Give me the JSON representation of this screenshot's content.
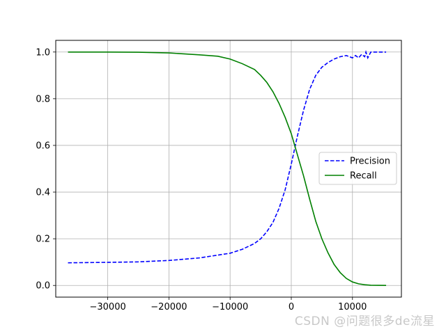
{
  "chart_data": {
    "type": "line",
    "title": "",
    "xlabel": "",
    "ylabel": "",
    "xlim": [
      -38500,
      18000
    ],
    "ylim": [
      -0.05,
      1.05
    ],
    "xticks": [
      -30000,
      -20000,
      -10000,
      0,
      10000
    ],
    "xtick_labels": [
      "−30000",
      "−20000",
      "−10000",
      "0",
      "10000"
    ],
    "yticks": [
      0.0,
      0.2,
      0.4,
      0.6,
      0.8,
      1.0
    ],
    "ytick_labels": [
      "0.0",
      "0.2",
      "0.4",
      "0.6",
      "0.8",
      "1.0"
    ],
    "grid": true,
    "legend": "center-right",
    "series": [
      {
        "name": "Precision",
        "color": "#0000ff",
        "style": "dashed",
        "x": [
          -36500,
          -30000,
          -25000,
          -20000,
          -15000,
          -10000,
          -8000,
          -6000,
          -5000,
          -4000,
          -3000,
          -2000,
          -1000,
          0,
          1000,
          2000,
          3000,
          4000,
          5000,
          6000,
          7000,
          8000,
          9000,
          10000,
          10500,
          11000,
          11500,
          12000,
          12200,
          12500,
          13000,
          15500
        ],
        "y": [
          0.097,
          0.099,
          0.101,
          0.107,
          0.118,
          0.138,
          0.155,
          0.18,
          0.2,
          0.23,
          0.27,
          0.33,
          0.41,
          0.52,
          0.64,
          0.75,
          0.84,
          0.9,
          0.935,
          0.955,
          0.97,
          0.98,
          0.985,
          0.975,
          0.985,
          0.975,
          0.99,
          0.98,
          1.0,
          0.975,
          1.0,
          1.0
        ]
      },
      {
        "name": "Recall",
        "color": "#008000",
        "style": "solid",
        "x": [
          -36500,
          -30000,
          -25000,
          -20000,
          -15000,
          -12000,
          -10000,
          -8000,
          -6000,
          -5000,
          -4000,
          -3000,
          -2000,
          -1000,
          0,
          1000,
          2000,
          3000,
          4000,
          5000,
          6000,
          7000,
          8000,
          9000,
          10000,
          11000,
          12000,
          13000,
          15500
        ],
        "y": [
          1.0,
          1.0,
          0.999,
          0.996,
          0.988,
          0.982,
          0.97,
          0.95,
          0.925,
          0.9,
          0.87,
          0.83,
          0.78,
          0.72,
          0.65,
          0.56,
          0.47,
          0.37,
          0.275,
          0.2,
          0.14,
          0.09,
          0.055,
          0.03,
          0.015,
          0.007,
          0.003,
          0.001,
          0.0
        ]
      }
    ]
  },
  "watermark": "CSDN @问题很多de流星"
}
